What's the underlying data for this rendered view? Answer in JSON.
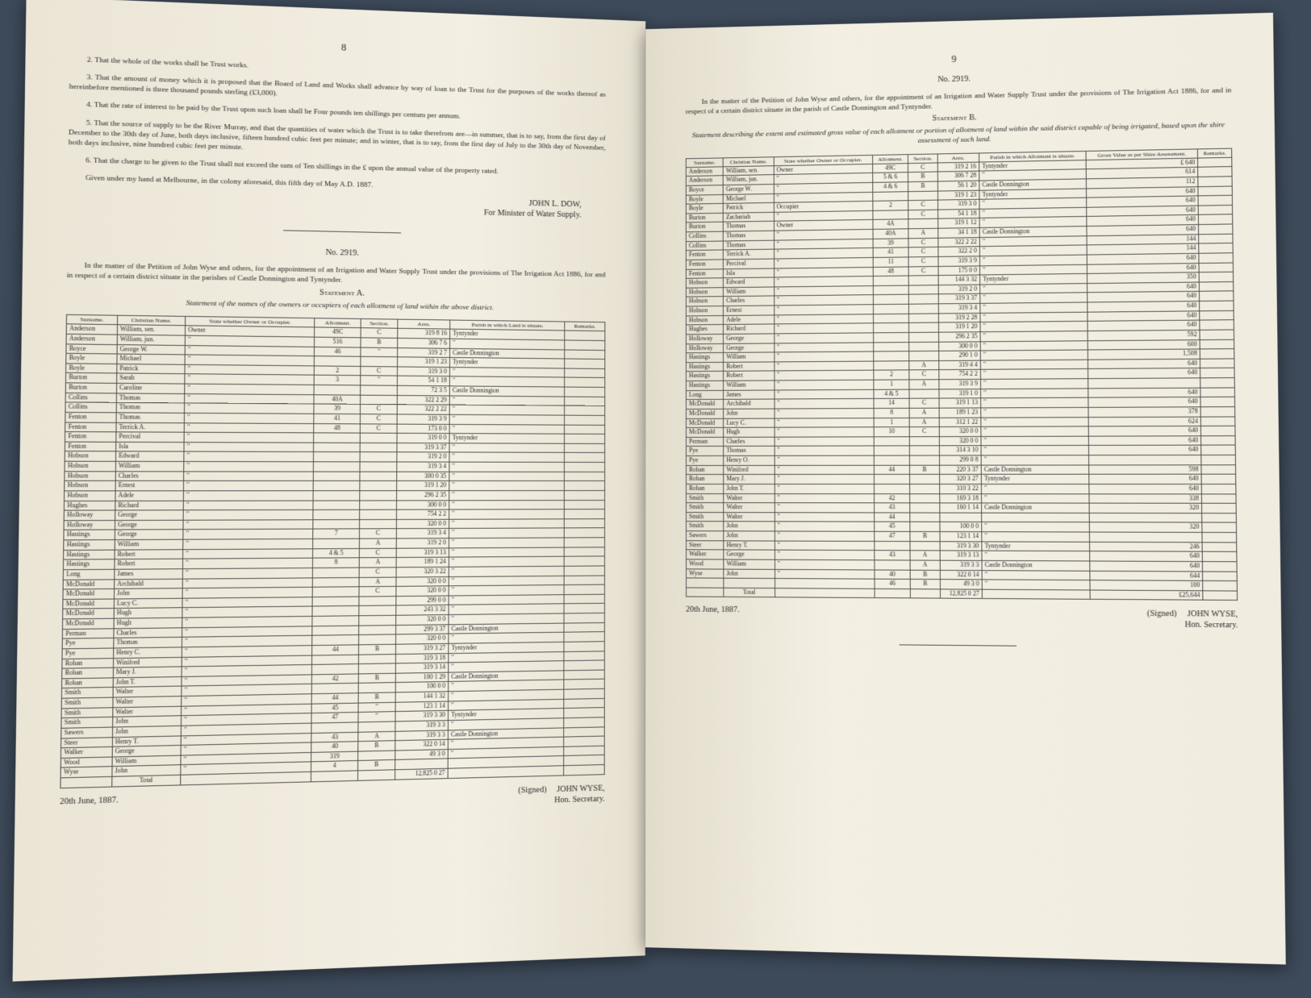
{
  "left": {
    "pageNum": "8",
    "para2": "2. That the whole of the works shall be Trust works.",
    "para3": "3. That the amount of money which it is proposed that the Board of Land and Works shall advance by way of loan to the Trust for the purposes of the works thereof as hereinbefore mentioned is three thousand pounds sterling (£3,000).",
    "para4": "4. That the rate of interest to be paid by the Trust upon such loan shall be Four pounds ten shillings per centum per annum.",
    "para5": "5. That the source of supply to be the River Murray, and that the quantities of water which the Trust is to take therefrom are—in summer, that is to say, from the first day of December to the 30th day of June, both days inclusive, fifteen hundred cubic feet per minute; and in winter, that is to say, from the first day of July to the 30th day of November, both days inclusive, nine hundred cubic feet per minute.",
    "para6": "6. That the charge to be given to the Trust shall not exceed the sum of Ten shillings in the £ upon the annual value of the property rated.",
    "para7": "Given under my hand at Melbourne, in the colony aforesaid, this fifth day of May A.D. 1887.",
    "sigName": "JOHN L. DOW,",
    "sigTitle": "For Minister of Water Supply.",
    "caseNo": "No. 2919.",
    "caseDesc": "In the matter of the Petition of John Wyse and others, for the appointment of an Irrigation and Water Supply Trust under the provisions of The Irrigation Act 1886, for and in respect of a certain district situate in the parishes of Castle Donnington and Tyntynder.",
    "stmtA": "Statement A.",
    "stmtADesc": "Statement of the names of the owners or occupiers of each allotment of land within the above district.",
    "tableA": {
      "headers": [
        "Surname.",
        "Christian Name.",
        "State whether Owner or Occupier.",
        "Allotment.",
        "Section.",
        "Area.",
        "Parish in which Land is situate.",
        "Remarks."
      ],
      "rows": [
        [
          "Anderson",
          "William, sen.",
          "Owner",
          "49C",
          "C",
          "319 8 16",
          "Tyntynder",
          ""
        ],
        [
          "Anderson",
          "William, jun.",
          "\"",
          "516",
          "B",
          "306 7 6",
          "\"",
          ""
        ],
        [
          "Boyce",
          "George W.",
          "\"",
          "46",
          "\"",
          "319 2 7",
          "Castle Donnington",
          ""
        ],
        [
          "Boyle",
          "Michael",
          "\"",
          "",
          "",
          "319 1 23",
          "Tyntynder",
          ""
        ],
        [
          "Boyle",
          "Patrick",
          "\"",
          "2",
          "C",
          "319 3 0",
          "\"",
          ""
        ],
        [
          "Burton",
          "Sarah",
          "\"",
          "3",
          "\"",
          "54 1 18",
          "\"",
          ""
        ],
        [
          "Burton",
          "Caroline",
          "\"",
          "",
          "",
          "72 3 5",
          "Castle Donnington",
          ""
        ],
        [
          "Collins",
          "Thomas",
          "\"",
          "40A",
          "",
          "322 2 29",
          "\"",
          ""
        ],
        [
          "Collins",
          "Thomas",
          "\"",
          "39",
          "C",
          "322 2 22",
          "\"",
          ""
        ],
        [
          "Fenton",
          "Thomas",
          "\"",
          "41",
          "C",
          "319 3 9",
          "\"",
          ""
        ],
        [
          "Fenton",
          "Terrick A.",
          "\"",
          "48",
          "C",
          "173 0 0",
          "\"",
          ""
        ],
        [
          "Fenton",
          "Percival",
          "\"",
          "",
          "",
          "319 0 0",
          "Tyntynder",
          ""
        ],
        [
          "Fenton",
          "Isla",
          "\"",
          "",
          "",
          "319 3 37",
          "\"",
          ""
        ],
        [
          "Hobson",
          "Edward",
          "\"",
          "",
          "",
          "319 2 0",
          "\"",
          ""
        ],
        [
          "Hobson",
          "William",
          "\"",
          "",
          "",
          "319 3 4",
          "\"",
          ""
        ],
        [
          "Hobson",
          "Charles",
          "\"",
          "",
          "",
          "300 0 35",
          "\"",
          ""
        ],
        [
          "Hobson",
          "Ernest",
          "\"",
          "",
          "",
          "319 1 20",
          "\"",
          ""
        ],
        [
          "Hobson",
          "Adele",
          "\"",
          "",
          "",
          "296 2 35",
          "\"",
          ""
        ],
        [
          "Hughes",
          "Richard",
          "\"",
          "",
          "",
          "300 0 0",
          "\"",
          ""
        ],
        [
          "Holloway",
          "George",
          "\"",
          "",
          "",
          "754 2 2",
          "\"",
          ""
        ],
        [
          "Holloway",
          "George",
          "\"",
          "",
          "",
          "320 0 0",
          "\"",
          ""
        ],
        [
          "Hastings",
          "George",
          "\"",
          "7",
          "C",
          "319 3 4",
          "\"",
          ""
        ],
        [
          "Hastings",
          "William",
          "\"",
          "",
          "A",
          "319 2 0",
          "\"",
          ""
        ],
        [
          "Hastings",
          "Robert",
          "\"",
          "4 & 5",
          "C",
          "319 3 13",
          "\"",
          ""
        ],
        [
          "Hastings",
          "Robert",
          "\"",
          "8",
          "A",
          "189 1 24",
          "\"",
          ""
        ],
        [
          "Long",
          "James",
          "\"",
          "",
          "C",
          "320 3 22",
          "\"",
          ""
        ],
        [
          "McDonald",
          "Archibald",
          "\"",
          "",
          "A",
          "320 0 0",
          "\"",
          ""
        ],
        [
          "McDonald",
          "John",
          "\"",
          "",
          "C",
          "320 0 0",
          "\"",
          ""
        ],
        [
          "McDonald",
          "Lucy C.",
          "\"",
          "",
          "",
          "299 0 0",
          "\"",
          ""
        ],
        [
          "McDonald",
          "Hugh",
          "\"",
          "",
          "",
          "243 3 32",
          "\"",
          ""
        ],
        [
          "McDonald",
          "Hugh",
          "\"",
          "",
          "",
          "320 0 0",
          "\"",
          ""
        ],
        [
          "Perman",
          "Charles",
          "\"",
          "",
          "",
          "299 3 37",
          "Castle Donnington",
          ""
        ],
        [
          "Pye",
          "Thomas",
          "\"",
          "",
          "",
          "320 0 0",
          "\"",
          ""
        ],
        [
          "Pye",
          "Henry C.",
          "\"",
          "44",
          "B",
          "319 3 27",
          "Tyntynder",
          ""
        ],
        [
          "Rohan",
          "Winifred",
          "\"",
          "",
          "",
          "319 3 18",
          "\"",
          ""
        ],
        [
          "Rohan",
          "Mary J.",
          "\"",
          "",
          "",
          "319 3 14",
          "\"",
          ""
        ],
        [
          "Rohan",
          "John T.",
          "\"",
          "42",
          "B",
          "100 1 29",
          "Castle Donnington",
          ""
        ],
        [
          "Smith",
          "Walter",
          "\"",
          "",
          "",
          "100 0 0",
          "\"",
          ""
        ],
        [
          "Smith",
          "Walter",
          "\"",
          "44",
          "B",
          "144 1 32",
          "\"",
          ""
        ],
        [
          "Smith",
          "Walter",
          "\"",
          "45",
          "\"",
          "123 1 14",
          "\"",
          ""
        ],
        [
          "Smith",
          "John",
          "\"",
          "47",
          "\"",
          "319 3 30",
          "Tyntynder",
          ""
        ],
        [
          "Sawers",
          "John",
          "\"",
          "",
          "",
          "319 3 3",
          "\"",
          ""
        ],
        [
          "Steer",
          "Henry T.",
          "\"",
          "43",
          "A",
          "319 3 3",
          "Castle Donnington",
          ""
        ],
        [
          "Walker",
          "George",
          "\"",
          "40",
          "B",
          "322 0 14",
          "\"",
          ""
        ],
        [
          "Wood",
          "William",
          "\"",
          "319",
          "",
          "49 3 0",
          "\"",
          ""
        ],
        [
          "Wyse",
          "John",
          "\"",
          "4",
          "B",
          "",
          "",
          ""
        ]
      ],
      "totalLabel": "Total",
      "totalArea": "12,825  0 27"
    },
    "footerDate": "20th June, 1887.",
    "footerSigned": "(Signed)",
    "footerName": "JOHN WYSE,",
    "footerTitle": "Hon. Secretary."
  },
  "right": {
    "pageNum": "9",
    "caseNo": "No. 2919.",
    "caseDesc": "In the matter of the Petition of John Wyse and others, for the appointment of an Irrigation and Water Supply Trust under the provisions of The Irrigation Act 1886, for and in respect of a certain district situate in the parish of Castle Donnington and Tyntynder.",
    "stmtB": "Statement B.",
    "stmtBDesc": "Statement describing the extent and estimated gross value of each allotment or portion of allotment of land within the said district capable of being irrigated, based upon the shire assessment of such land.",
    "tableB": {
      "headers": [
        "Surname.",
        "Christian Name.",
        "State whether Owner or Occupier.",
        "Allotment.",
        "Section.",
        "Area.",
        "Parish in which Allotment is situate.",
        "Gross Value as per Shire Assessment.",
        "Remarks."
      ],
      "rows": [
        [
          "Anderson",
          "William, sen.",
          "Owner",
          "49C",
          "C",
          "319 2 16",
          "Tyntynder",
          "£ 640",
          ""
        ],
        [
          "Anderson",
          "William, jun.",
          "\"",
          "5 & 6",
          "B",
          "306 7 28",
          "\"",
          "614",
          ""
        ],
        [
          "Boyce",
          "George W.",
          "\"",
          "4 & 6",
          "B",
          "56 1 20",
          "Castle Donnington",
          "112",
          ""
        ],
        [
          "Boyle",
          "Michael",
          "\"",
          "",
          "",
          "319 1 23",
          "Tyntynder",
          "640",
          ""
        ],
        [
          "Boyle",
          "Patrick",
          "Occupier",
          "2",
          "C",
          "319 3 0",
          "\"",
          "640",
          ""
        ],
        [
          "Burton",
          "Zachariah",
          "\"",
          "",
          "C",
          "54 1 18",
          "\"",
          "640",
          ""
        ],
        [
          "Burton",
          "Thomas",
          "Owner",
          "4A",
          "",
          "319 1 12",
          "\"",
          "640",
          ""
        ],
        [
          "Collins",
          "Thomas",
          "\"",
          "40A",
          "A",
          "34 1 18",
          "Castle Donnington",
          "640",
          ""
        ],
        [
          "Collins",
          "Thomas",
          "\"",
          "39",
          "C",
          "322 2 22",
          "\"",
          "144",
          ""
        ],
        [
          "Fenton",
          "Terrick A.",
          "\"",
          "41",
          "C",
          "322 2 0",
          "\"",
          "144",
          ""
        ],
        [
          "Fenton",
          "Percival",
          "\"",
          "11",
          "C",
          "319 3 9",
          "\"",
          "640",
          ""
        ],
        [
          "Fenton",
          "Isla",
          "\"",
          "48",
          "C",
          "175 0 0",
          "\"",
          "640",
          ""
        ],
        [
          "Hobson",
          "Edward",
          "\"",
          "",
          "",
          "144 3 32",
          "Tyntynder",
          "350",
          ""
        ],
        [
          "Hobson",
          "William",
          "\"",
          "",
          "",
          "319 2 0",
          "\"",
          "640",
          ""
        ],
        [
          "Hobson",
          "Charles",
          "\"",
          "",
          "",
          "319 3 37",
          "\"",
          "640",
          ""
        ],
        [
          "Hobson",
          "Ernest",
          "\"",
          "",
          "",
          "319 3 4",
          "\"",
          "640",
          ""
        ],
        [
          "Hobson",
          "Adele",
          "\"",
          "",
          "",
          "319 2 28",
          "\"",
          "640",
          ""
        ],
        [
          "Hughes",
          "Richard",
          "\"",
          "",
          "",
          "319 1 20",
          "\"",
          "640",
          ""
        ],
        [
          "Holloway",
          "George",
          "\"",
          "",
          "",
          "296 2 35",
          "\"",
          "592",
          ""
        ],
        [
          "Holloway",
          "George",
          "\"",
          "",
          "",
          "300 0 0",
          "\"",
          "600",
          ""
        ],
        [
          "Hastings",
          "William",
          "\"",
          "",
          "",
          "290 1 0",
          "\"",
          "1,508",
          ""
        ],
        [
          "Hastings",
          "Robert",
          "\"",
          "",
          "A",
          "319 4 4",
          "\"",
          "640",
          ""
        ],
        [
          "Hastings",
          "Robert",
          "\"",
          "2",
          "C",
          "754 2 2",
          "\"",
          "640",
          ""
        ],
        [
          "Hastings",
          "William",
          "\"",
          "1",
          "A",
          "319 3 9",
          "\"",
          "",
          ""
        ],
        [
          "Long",
          "James",
          "\"",
          "4 & 5",
          "",
          "319 1 0",
          "\"",
          "640",
          ""
        ],
        [
          "McDonald",
          "Archibald",
          "\"",
          "14",
          "C",
          "319 1 13",
          "\"",
          "640",
          ""
        ],
        [
          "McDonald",
          "John",
          "\"",
          "8",
          "A",
          "189 1 23",
          "\"",
          "378",
          ""
        ],
        [
          "McDonald",
          "Lucy C.",
          "\"",
          "1",
          "A",
          "312 1 22",
          "\"",
          "624",
          ""
        ],
        [
          "McDonald",
          "Hugh",
          "\"",
          "10",
          "C",
          "320 0 0",
          "\"",
          "640",
          ""
        ],
        [
          "Perman",
          "Charles",
          "\"",
          "",
          "",
          "320 0 0",
          "\"",
          "640",
          ""
        ],
        [
          "Pye",
          "Thomas",
          "\"",
          "",
          "",
          "314 3 10",
          "\"",
          "640",
          ""
        ],
        [
          "Pye",
          "Henry O.",
          "\"",
          "",
          "",
          "299 0 8",
          "\"",
          "",
          ""
        ],
        [
          "Rohan",
          "Winifred",
          "\"",
          "44",
          "B",
          "220 3 37",
          "Castle Donnington",
          "598",
          ""
        ],
        [
          "Rohan",
          "Mary J.",
          "\"",
          "",
          "",
          "320 3 27",
          "Tyntynder",
          "640",
          ""
        ],
        [
          "Rohan",
          "John T.",
          "\"",
          "",
          "",
          "310 3 22",
          "\"",
          "640",
          ""
        ],
        [
          "Smith",
          "Walter",
          "\"",
          "42",
          "",
          "169 3 18",
          "\"",
          "338",
          ""
        ],
        [
          "Smith",
          "Walter",
          "\"",
          "43",
          "",
          "160 1 14",
          "Castle Donnington",
          "320",
          ""
        ],
        [
          "Smith",
          "Walter",
          "\"",
          "44",
          "",
          "",
          "",
          "",
          ""
        ],
        [
          "Smith",
          "John",
          "\"",
          "45",
          "",
          "100 0 0",
          "\"",
          "320",
          ""
        ],
        [
          "Sawers",
          "John",
          "\"",
          "47",
          "B",
          "123 1 14",
          "\"",
          "",
          ""
        ],
        [
          "Steer",
          "Henry T.",
          "\"",
          "",
          "",
          "319 3 30",
          "Tyntynder",
          "246",
          ""
        ],
        [
          "Walker",
          "George",
          "\"",
          "43",
          "A",
          "319 3 13",
          "\"",
          "640",
          ""
        ],
        [
          "Wood",
          "William",
          "\"",
          "",
          "A",
          "319 3 3",
          "Castle Donnington",
          "640",
          ""
        ],
        [
          "Wyse",
          "John",
          "\"",
          "40",
          "B",
          "322 0 14",
          "\"",
          "644",
          ""
        ],
        [
          "",
          "",
          "",
          "46",
          "B",
          "49 3 0",
          "\"",
          "100",
          ""
        ]
      ],
      "totalLabel": "Total",
      "totalArea": "12,825  0 27",
      "totalValue": "£25,644"
    },
    "footerDate": "20th June, 1887.",
    "footerSigned": "(Signed)",
    "footerName": "JOHN WYSE,",
    "footerTitle": "Hon. Secretary."
  },
  "colors": {
    "pageBg": "#f1ece0",
    "bookCover": "#2a3a5c",
    "surround": "#3d4a5a",
    "text": "#2a2a2a",
    "rule": "#555555"
  }
}
